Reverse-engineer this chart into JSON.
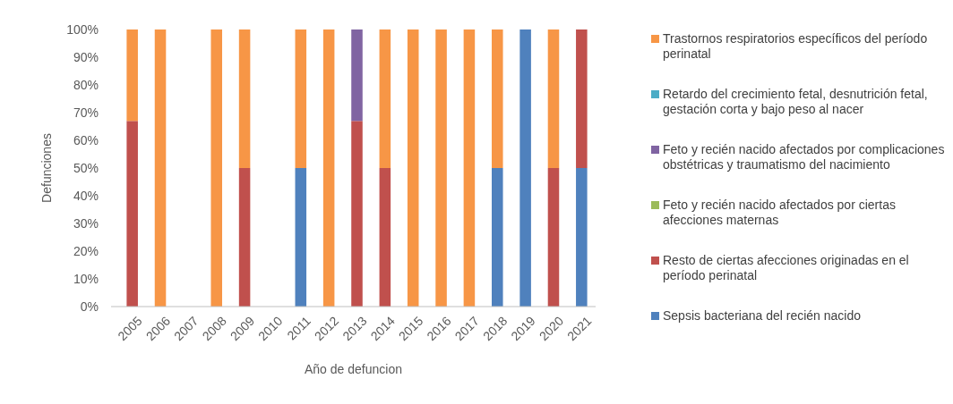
{
  "chart_data": {
    "type": "bar",
    "stacked": true,
    "xlabel": "Año de defuncion",
    "ylabel": "Defunciones",
    "categories": [
      "2005",
      "2006",
      "2007",
      "2008",
      "2009",
      "2010",
      "2011",
      "2012",
      "2013",
      "2014",
      "2015",
      "2016",
      "2017",
      "2018",
      "2019",
      "2020",
      "2021"
    ],
    "series": [
      {
        "name": "Sepsis bacteriana del recién nacido",
        "color": "#4f81bd",
        "values": [
          0,
          0,
          0,
          0,
          0,
          0,
          50,
          0,
          0,
          0,
          0,
          0,
          0,
          50,
          100,
          0,
          50
        ]
      },
      {
        "name": "Resto de ciertas afecciones originadas en el período perinatal",
        "color": "#c0504d",
        "values": [
          67,
          0,
          0,
          0,
          50,
          0,
          0,
          0,
          67,
          50,
          0,
          0,
          0,
          0,
          0,
          50,
          50
        ]
      },
      {
        "name": "Feto y recién nacido afectados por ciertas afecciones maternas",
        "color": "#9bbb59",
        "values": [
          0,
          0,
          0,
          0,
          0,
          0,
          0,
          0,
          0,
          0,
          0,
          0,
          0,
          0,
          0,
          0,
          0
        ]
      },
      {
        "name": "Feto y recién nacido afectados por complicaciones obstétricas y traumatismo del nacimiento",
        "color": "#8064a2",
        "values": [
          0,
          0,
          0,
          0,
          0,
          0,
          0,
          0,
          33,
          0,
          0,
          0,
          0,
          0,
          0,
          0,
          0
        ]
      },
      {
        "name": "Retardo del crecimiento fetal, desnutrición fetal, gestación corta y bajo peso al nacer",
        "color": "#4bacc6",
        "values": [
          0,
          0,
          0,
          0,
          0,
          0,
          0,
          0,
          0,
          0,
          0,
          0,
          0,
          0,
          0,
          0,
          0
        ]
      },
      {
        "name": "Trastornos respiratorios específicos del período perinatal",
        "color": "#f79646",
        "values": [
          33,
          100,
          0,
          100,
          50,
          0,
          50,
          100,
          0,
          50,
          100,
          100,
          100,
          50,
          0,
          50,
          0
        ]
      }
    ],
    "ylim": [
      0,
      100
    ],
    "yticks": [
      {
        "value": 0,
        "label": "0%"
      },
      {
        "value": 10,
        "label": "10%"
      },
      {
        "value": 20,
        "label": "20%"
      },
      {
        "value": 30,
        "label": "30%"
      },
      {
        "value": 40,
        "label": "40%"
      },
      {
        "value": 50,
        "label": "50%"
      },
      {
        "value": 60,
        "label": "60%"
      },
      {
        "value": 70,
        "label": "70%"
      },
      {
        "value": 80,
        "label": "80%"
      },
      {
        "value": 90,
        "label": "90%"
      },
      {
        "value": 100,
        "label": "100%"
      }
    ],
    "grid": false,
    "legend": "right"
  }
}
